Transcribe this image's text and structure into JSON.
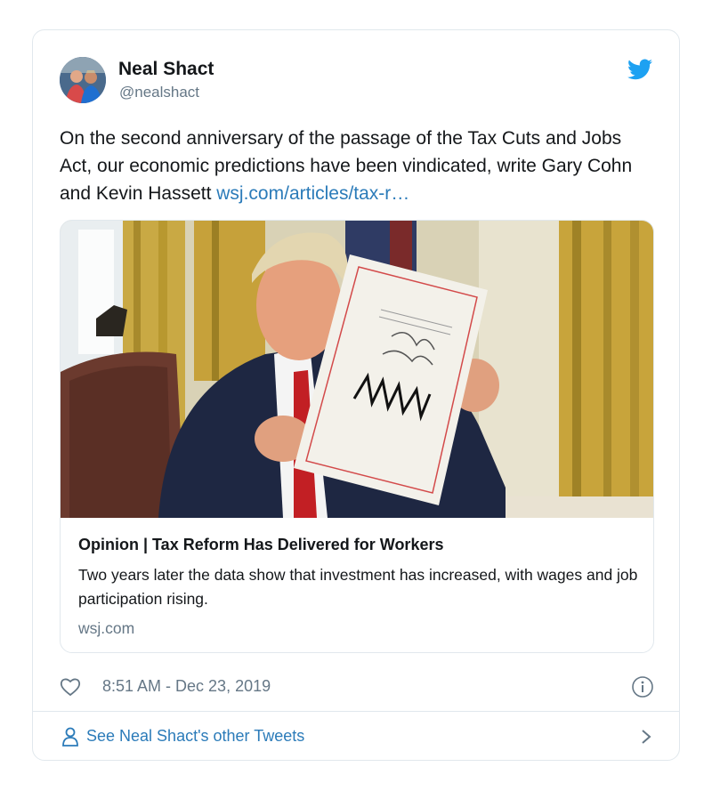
{
  "author": {
    "name": "Neal Shact",
    "handle": "@nealshact"
  },
  "tweet": {
    "text": "On the second anniversary of the passage of the Tax Cuts and Jobs Act, our economic predictions have been vindicated, write Gary Cohn and Kevin Hassett ",
    "link_text": "wsj.com/articles/tax-r…"
  },
  "link_card": {
    "title": "Opinion | Tax Reform Has Delivered for Workers",
    "description": "Two years later the data show that investment has increased, with wages and job participation rising.",
    "domain": "wsj.com"
  },
  "meta": {
    "timestamp": "8:51 AM - Dec 23, 2019"
  },
  "footer": {
    "other_tweets_label": "See Neal Shact's other Tweets"
  },
  "icons": {
    "brand": "twitter-bird-icon",
    "like": "heart-icon",
    "info": "info-icon",
    "profile": "person-icon",
    "more": "chevron-right-icon"
  },
  "colors": {
    "brand_blue": "#1da1f2",
    "link_blue": "#2b7bb9",
    "muted_gray": "#657786",
    "border": "#e1e8ed"
  }
}
